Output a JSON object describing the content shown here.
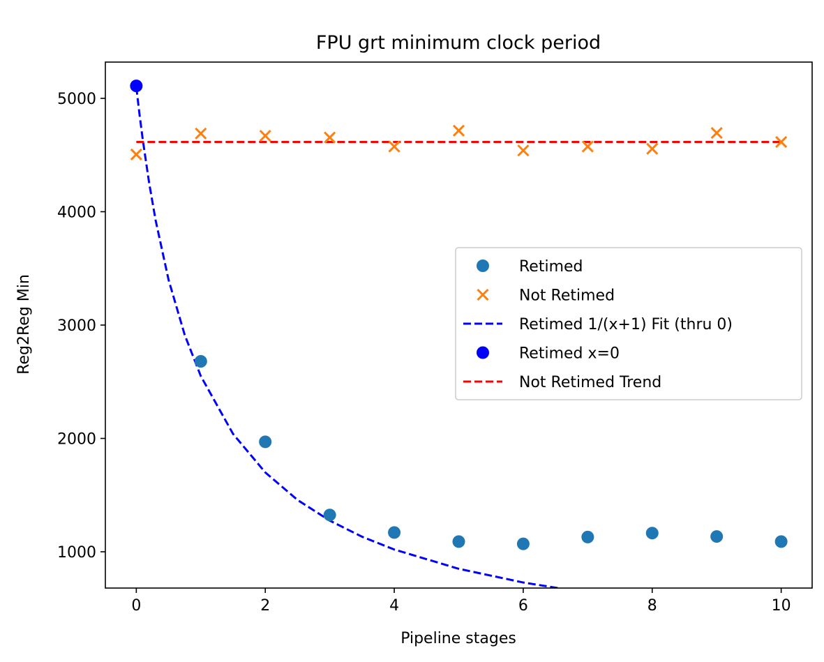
{
  "chart_data": {
    "type": "scatter",
    "title": "FPU grt minimum clock period",
    "xlabel": "Pipeline stages",
    "ylabel": "Reg2Reg Min",
    "xlim": [
      -0.48,
      10.48
    ],
    "ylim": [
      680,
      5320
    ],
    "xticks": [
      0,
      2,
      4,
      6,
      8,
      10
    ],
    "yticks": [
      1000,
      2000,
      3000,
      4000,
      5000
    ],
    "grid": false,
    "legend_position": "center-right",
    "series": [
      {
        "name": "Retimed",
        "kind": "scatter",
        "marker": "circle",
        "color": "#1f77b4",
        "x": [
          1,
          2,
          3,
          4,
          5,
          6,
          7,
          8,
          9,
          10
        ],
        "y": [
          2680,
          1970,
          1325,
          1170,
          1090,
          1070,
          1130,
          1165,
          1135,
          1090
        ]
      },
      {
        "name": "Not Retimed",
        "kind": "scatter",
        "marker": "x",
        "color": "#ff7f0e",
        "x": [
          0,
          1,
          2,
          3,
          4,
          5,
          6,
          7,
          8,
          9,
          10
        ],
        "y": [
          4505,
          4690,
          4670,
          4655,
          4575,
          4715,
          4540,
          4575,
          4555,
          4695,
          4615
        ]
      },
      {
        "name": "Retimed 1/(x+1) Fit (thru 0)",
        "kind": "line",
        "dash": "dashed",
        "color": "#0000ff",
        "x": [
          0,
          0.05,
          0.1,
          0.2,
          0.3,
          0.5,
          0.75,
          1,
          1.5,
          2,
          2.5,
          3,
          3.5,
          4,
          5,
          6,
          7,
          8,
          9,
          10
        ],
        "y": [
          5100,
          4857,
          4636,
          4250,
          3923,
          3400,
          2914,
          2550,
          2040,
          1700,
          1457,
          1275,
          1133,
          1020,
          850,
          729,
          638,
          567,
          510,
          464
        ]
      },
      {
        "name": "Retimed x=0",
        "kind": "scatter",
        "marker": "circle",
        "color": "#0000ff",
        "x": [
          0
        ],
        "y": [
          5110
        ]
      },
      {
        "name": "Not Retimed Trend",
        "kind": "line",
        "dash": "dashed",
        "color": "#ff0000",
        "x": [
          0,
          10
        ],
        "y": [
          4615,
          4615
        ]
      }
    ]
  }
}
